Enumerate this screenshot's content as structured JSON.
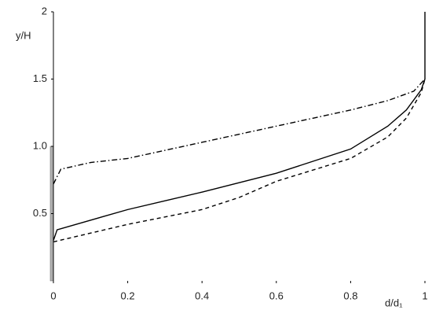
{
  "chart_data": {
    "type": "line",
    "y_label": "y/H",
    "x_label": "d/d₁",
    "xlim": [
      0,
      1
    ],
    "ylim": [
      0,
      2
    ],
    "xticks": [
      0,
      0.2,
      0.4,
      0.6,
      0.8,
      1
    ],
    "yticks": [
      0.5,
      {
        "value": 1,
        "label": "1.0"
      },
      1.5,
      2
    ],
    "wall_height": 1,
    "wall_color": "#b0b0b0",
    "series": [
      {
        "color": "#000000",
        "dash": "none",
        "x": [
          0,
          0.01,
          0.2,
          0.4,
          0.6,
          0.8,
          0.9,
          0.95,
          0.99,
          1,
          1
        ],
        "values": [
          0.3,
          0.38,
          0.53,
          0.66,
          0.8,
          0.98,
          1.15,
          1.27,
          1.42,
          1.5,
          2
        ]
      },
      {
        "color": "#000000",
        "dash": "5 4",
        "x": [
          0,
          0.2,
          0.4,
          0.5,
          0.6,
          0.8,
          0.9,
          0.95,
          0.99,
          1
        ],
        "values": [
          0.29,
          0.42,
          0.53,
          0.62,
          0.74,
          0.91,
          1.07,
          1.21,
          1.4,
          1.5
        ]
      },
      {
        "color": "#000000",
        "dash": "7 3 1.5 3",
        "x": [
          0,
          0.02,
          0.1,
          0.2,
          0.4,
          0.6,
          0.8,
          0.9,
          0.97,
          1
        ],
        "values": [
          0.72,
          0.83,
          0.88,
          0.91,
          1.03,
          1.15,
          1.27,
          1.34,
          1.41,
          1.5
        ]
      }
    ]
  }
}
